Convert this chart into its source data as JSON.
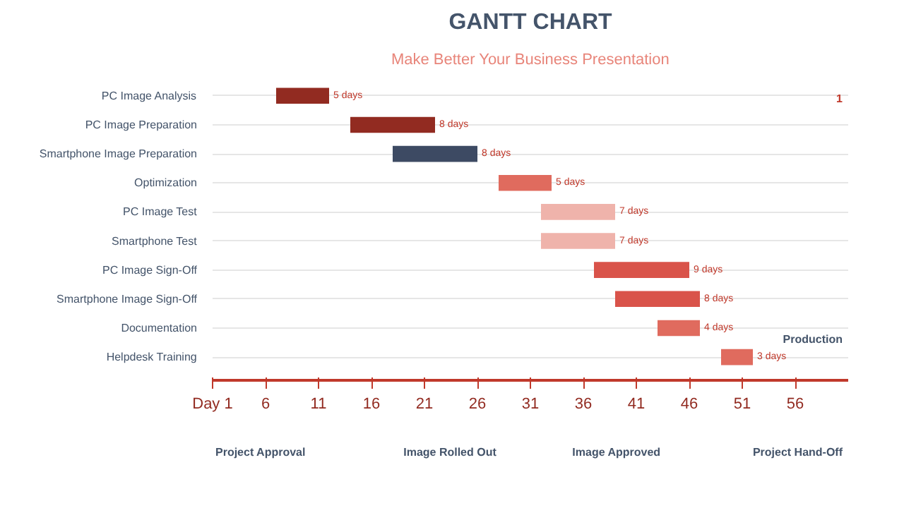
{
  "chart_data": {
    "type": "bar",
    "orientation": "horizontal",
    "title": "GANTT CHART",
    "subtitle": "Make Better Your Business Presentation",
    "categories": [
      "PC Image Analysis",
      "PC Image Preparation",
      "Smartphone Image Preparation",
      "Optimization",
      "PC Image Test",
      "Smartphone Test",
      "PC Image Sign-Off",
      "Smartphone Image Sign-Off",
      "Documentation",
      "Helpdesk Training"
    ],
    "base": [
      7,
      14,
      18,
      28,
      32,
      32,
      37,
      39,
      43,
      49
    ],
    "values": [
      5,
      8,
      8,
      5,
      7,
      7,
      9,
      8,
      4,
      3
    ],
    "colors": [
      "#922b21",
      "#922b21",
      "#3d4a63",
      "#e06b5e",
      "#efb3ab",
      "#efb3ab",
      "#d9534a",
      "#d9534a",
      "#e06b5e",
      "#e06b5e"
    ],
    "value_labels": [
      "5 days",
      "8 days",
      "8 days",
      "5 days",
      "7 days",
      "7 days",
      "9 days",
      "8 days",
      "4 days",
      "3 days"
    ],
    "xlim": [
      1,
      61
    ],
    "xticks": [
      {
        "value": 1,
        "label": "Day 1"
      },
      6,
      11,
      16,
      21,
      26,
      31,
      36,
      41,
      46,
      51,
      56
    ],
    "grid": "y",
    "annotations": [
      "Project Approval",
      "Image Rolled Out",
      "Image Approved",
      "Production",
      "Project Hand-Off",
      "1"
    ]
  }
}
